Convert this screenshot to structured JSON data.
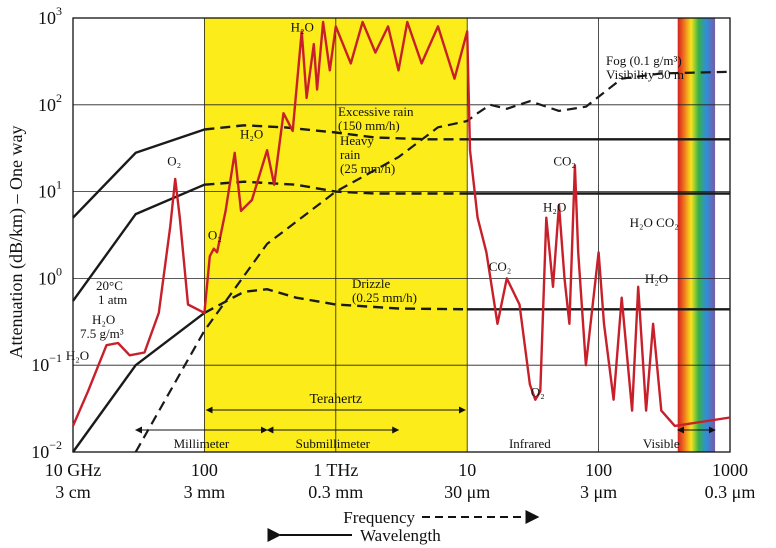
{
  "chart_data": {
    "type": "line",
    "ylabel": "Attenuation (dB/km) – One way",
    "xlabel_freq": "Frequency",
    "xlabel_wave": "Wavelength",
    "x_scale": "log (frequency, GHz)",
    "y_scale": "log",
    "xlim_ghz": [
      10,
      1000000
    ],
    "ylim": [
      0.01,
      1000
    ],
    "y_ticks": [
      {
        "value": 0.01,
        "base": "10",
        "exp": "−2"
      },
      {
        "value": 0.1,
        "base": "10",
        "exp": "−1"
      },
      {
        "value": 1,
        "base": "10",
        "exp": "0"
      },
      {
        "value": 10,
        "base": "10",
        "exp": "1"
      },
      {
        "value": 100,
        "base": "10",
        "exp": "2"
      },
      {
        "value": 1000,
        "base": "10",
        "exp": "3"
      }
    ],
    "x_ticks": [
      {
        "ghz": 10,
        "freq": "10 GHz",
        "wave": "3 cm"
      },
      {
        "ghz": 100,
        "freq": "100",
        "wave": "3 mm"
      },
      {
        "ghz": 1000,
        "freq": "1 THz",
        "wave": "0.3 mm"
      },
      {
        "ghz": 10000,
        "freq": "10",
        "wave": "30 μm"
      },
      {
        "ghz": 100000,
        "freq": "100",
        "wave": "3 μm"
      },
      {
        "ghz": 1000000,
        "freq": "1000",
        "wave": "0.3 μm"
      }
    ],
    "grid": true,
    "terahertz_band_ghz": [
      100,
      10000
    ],
    "bands": {
      "terahertz": "Terahertz",
      "millimeter": "Millimeter",
      "submillimeter": "Submillimeter",
      "infrared": "Infrared",
      "visible": "Visible"
    },
    "conditions": {
      "temperature": "20°C",
      "pressure": "1 atm",
      "humidity": "H₂O",
      "density": "7.5 g/m³"
    },
    "series": [
      {
        "name": "Excessive rain (150 mm/h)",
        "label_lines": [
          "Excessive rain",
          "(150 mm/h)"
        ],
        "color": "#1a1a1a",
        "points": [
          [
            10,
            5
          ],
          [
            30,
            28
          ],
          [
            100,
            52
          ],
          [
            200,
            58
          ],
          [
            400,
            55
          ],
          [
            1000,
            48
          ],
          [
            2000,
            42
          ],
          [
            5000,
            40
          ],
          [
            10000,
            40
          ],
          [
            100000,
            40
          ],
          [
            1000000,
            40
          ]
        ]
      },
      {
        "name": "Heavy rain (25 mm/h)",
        "label_lines": [
          "Heavy",
          "rain",
          "(25 mm/h)"
        ],
        "color": "#1a1a1a",
        "points": [
          [
            10,
            0.55
          ],
          [
            30,
            5.5
          ],
          [
            100,
            12
          ],
          [
            200,
            13
          ],
          [
            500,
            12
          ],
          [
            1000,
            10
          ],
          [
            2000,
            9.5
          ],
          [
            5000,
            9.5
          ],
          [
            10000,
            9.5
          ],
          [
            100000,
            9.5
          ],
          [
            1000000,
            9.5
          ]
        ]
      },
      {
        "name": "Drizzle (0.25 mm/h)",
        "label_lines": [
          "Drizzle",
          "(0.25 mm/h)"
        ],
        "color": "#1a1a1a",
        "points": [
          [
            10,
            0.01
          ],
          [
            30,
            0.1
          ],
          [
            100,
            0.4
          ],
          [
            200,
            0.7
          ],
          [
            300,
            0.75
          ],
          [
            500,
            0.6
          ],
          [
            1000,
            0.5
          ],
          [
            3000,
            0.45
          ],
          [
            10000,
            0.44
          ],
          [
            100000,
            0.44
          ],
          [
            1000000,
            0.44
          ]
        ]
      },
      {
        "name": "Fog (0.1 g/m³) Visibility 50 m",
        "label_lines": [
          "Fog (0.1 g/m³)",
          "Visibility 50 m"
        ],
        "color": "#1a1a1a",
        "points": [
          [
            30,
            0.01
          ],
          [
            100,
            0.25
          ],
          [
            300,
            2.5
          ],
          [
            1000,
            10
          ],
          [
            3000,
            25
          ],
          [
            6000,
            55
          ],
          [
            10000,
            65
          ],
          [
            12000,
            80
          ],
          [
            15000,
            100
          ],
          [
            20000,
            90
          ],
          [
            30000,
            110
          ],
          [
            50000,
            85
          ],
          [
            80000,
            95
          ],
          [
            150000,
            200
          ],
          [
            300000,
            230
          ],
          [
            1000000,
            240
          ]
        ]
      },
      {
        "name": "Atmospheric gases",
        "color": "#c8202a",
        "points": [
          [
            10,
            0.02
          ],
          [
            13,
            0.05
          ],
          [
            18,
            0.17
          ],
          [
            22,
            0.18
          ],
          [
            27,
            0.13
          ],
          [
            35,
            0.14
          ],
          [
            45,
            0.4
          ],
          [
            55,
            4
          ],
          [
            60,
            14
          ],
          [
            65,
            5
          ],
          [
            75,
            0.5
          ],
          [
            100,
            0.4
          ],
          [
            110,
            1.8
          ],
          [
            118,
            2.2
          ],
          [
            125,
            2
          ],
          [
            145,
            6
          ],
          [
            170,
            28
          ],
          [
            190,
            6
          ],
          [
            230,
            8
          ],
          [
            300,
            30
          ],
          [
            340,
            12
          ],
          [
            400,
            80
          ],
          [
            470,
            50
          ],
          [
            550,
            700
          ],
          [
            600,
            120
          ],
          [
            680,
            500
          ],
          [
            720,
            150
          ],
          [
            800,
            900
          ],
          [
            900,
            250
          ],
          [
            1000,
            800
          ],
          [
            1300,
            300
          ],
          [
            1600,
            900
          ],
          [
            2000,
            400
          ],
          [
            2500,
            800
          ],
          [
            3000,
            250
          ],
          [
            3500,
            900
          ],
          [
            4500,
            300
          ],
          [
            6000,
            800
          ],
          [
            8000,
            200
          ],
          [
            10000,
            700
          ],
          [
            10500,
            30
          ],
          [
            12000,
            5
          ],
          [
            14000,
            2
          ],
          [
            17000,
            0.3
          ],
          [
            20000,
            1
          ],
          [
            25000,
            0.5
          ],
          [
            30000,
            0.06
          ],
          [
            33000,
            0.04
          ],
          [
            36000,
            0.05
          ],
          [
            40000,
            5
          ],
          [
            45000,
            0.8
          ],
          [
            50000,
            7
          ],
          [
            55000,
            1
          ],
          [
            60000,
            0.3
          ],
          [
            66000,
            20
          ],
          [
            70000,
            2
          ],
          [
            80000,
            0.1
          ],
          [
            100000,
            2
          ],
          [
            110000,
            0.3
          ],
          [
            130000,
            0.04
          ],
          [
            150000,
            0.6
          ],
          [
            180000,
            0.03
          ],
          [
            200000,
            0.8
          ],
          [
            230000,
            0.03
          ],
          [
            260000,
            0.3
          ],
          [
            300000,
            0.03
          ],
          [
            380000,
            0.02
          ],
          [
            1000000,
            0.025
          ]
        ]
      }
    ],
    "annotations": [
      {
        "id": "h2o_top",
        "text": "H₂O",
        "ghz": 600,
        "y": 600
      },
      {
        "id": "h2o_mid",
        "text": "H₂O",
        "ghz": 200,
        "y": 35
      },
      {
        "id": "o2_60",
        "text": "O₂",
        "ghz": 60,
        "y": 18
      },
      {
        "id": "o2_118",
        "text": "O₂",
        "ghz": 118,
        "y": 2.4
      },
      {
        "id": "co2_a",
        "text": "CO₂",
        "ghz": 62000,
        "y": 18
      },
      {
        "id": "h2o_ir1",
        "text": "H₂O",
        "ghz": 45000,
        "y": 5
      },
      {
        "id": "co2_b",
        "text": "CO₂",
        "ghz": 20000,
        "y": 1.1
      },
      {
        "id": "o2_ir",
        "text": "O₂",
        "ghz": 35000,
        "y": 0.06
      },
      {
        "id": "h2o_co2",
        "text": "H₂O CO₂",
        "ghz": 220000,
        "y": 3.5
      },
      {
        "id": "h2o_vis",
        "text": "H₂O",
        "ghz": 250000,
        "y": 0.8
      },
      {
        "id": "h2o_22",
        "text": "H₂O",
        "ghz": 16,
        "y": 0.15
      }
    ],
    "legend_text": {
      "freq_arrow": "Frequency",
      "wave_arrow": "Wavelength"
    }
  }
}
